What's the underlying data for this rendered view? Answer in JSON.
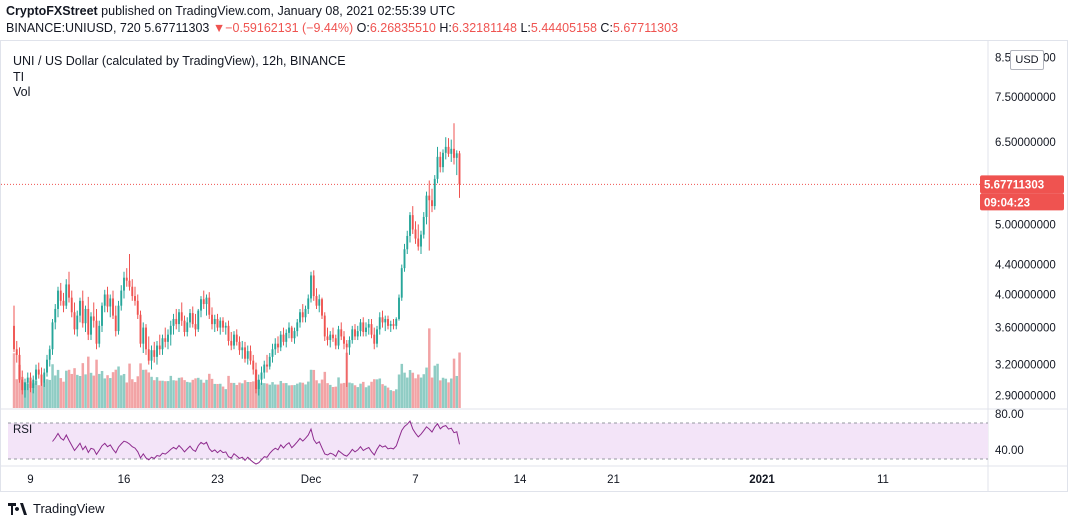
{
  "header": {
    "publisher": "CryptoFXStreet",
    "published_text": "published on TradingView.com, January 08, 2021 02:55:39 UTC"
  },
  "quote": {
    "symbol_text": "BINANCE:UNIUSD, 720",
    "last": "5.67711303",
    "arrow": "▼",
    "change": "−0.59162131 (−9.44%)",
    "o_label": "O:",
    "o": "6.26835510",
    "h_label": "H:",
    "h": "6.32181148",
    "l_label": "L:",
    "l": "5.44405158",
    "c_label": "C:",
    "c": "5.67711303"
  },
  "legend": {
    "title": "UNI / US Dollar (calculated by TradingView), 12h, BINANCE",
    "indicator1": "TI",
    "indicator2": "Vol",
    "rsi": "RSI"
  },
  "price_scale": {
    "currency": "USD",
    "last_price_label": "5.67711303",
    "countdown_label": "09:04:23",
    "rsi_ticks": [
      "80.00",
      "40.00"
    ]
  },
  "footer": {
    "brand": "TradingView"
  },
  "colors": {
    "up": "#26a69a",
    "down": "#ef5350",
    "vol_up": "#8fccc4",
    "vol_down": "#f2a3a5",
    "rsi": "#8e2b8e",
    "rsi_band": "#f3e4f8"
  },
  "chart_data": {
    "type": "candlestick",
    "timeframe": "12h",
    "y_scale": "log",
    "y_ticks": [
      "8.50000000",
      "7.50000000",
      "6.50000000",
      "5.00000000",
      "4.40000000",
      "4.00000000",
      "3.60000000",
      "3.20000000",
      "2.90000000"
    ],
    "x_ticks": [
      "9",
      "16",
      "23",
      "Dec",
      "7",
      "14",
      "21",
      "2021",
      "11"
    ],
    "x_tick_sessions": [
      6,
      40,
      74,
      108,
      146,
      184,
      218,
      272,
      316
    ],
    "candles": [
      [
        3.62,
        3.86,
        3.33,
        3.36
      ],
      [
        3.36,
        3.45,
        3.22,
        3.3
      ],
      [
        3.3,
        3.38,
        3.02,
        3.05
      ],
      [
        3.05,
        3.14,
        2.91,
        2.95
      ],
      [
        2.95,
        3.06,
        2.88,
        3.02
      ],
      [
        3.02,
        3.12,
        2.95,
        3.07
      ],
      [
        3.07,
        3.12,
        2.93,
        2.97
      ],
      [
        2.97,
        3.09,
        2.92,
        3.05
      ],
      [
        3.05,
        3.2,
        3.0,
        3.15
      ],
      [
        3.15,
        3.22,
        3.06,
        3.1
      ],
      [
        3.1,
        3.17,
        2.99,
        3.02
      ],
      [
        3.02,
        3.16,
        2.98,
        3.12
      ],
      [
        3.12,
        3.3,
        3.08,
        3.25
      ],
      [
        3.25,
        3.4,
        3.18,
        3.36
      ],
      [
        3.36,
        3.7,
        3.3,
        3.66
      ],
      [
        3.66,
        3.88,
        3.58,
        3.82
      ],
      [
        3.82,
        4.1,
        3.72,
        4.05
      ],
      [
        4.05,
        4.15,
        3.86,
        3.92
      ],
      [
        3.92,
        4.02,
        3.78,
        3.86
      ],
      [
        3.86,
        4.2,
        3.82,
        4.13
      ],
      [
        4.13,
        4.3,
        3.9,
        3.96
      ],
      [
        3.96,
        4.05,
        3.72,
        3.78
      ],
      [
        3.78,
        3.9,
        3.52,
        3.58
      ],
      [
        3.58,
        3.8,
        3.5,
        3.74
      ],
      [
        3.74,
        3.96,
        3.66,
        3.92
      ],
      [
        3.92,
        4.05,
        3.6,
        3.65
      ],
      [
        3.65,
        3.86,
        3.55,
        3.82
      ],
      [
        3.82,
        3.97,
        3.46,
        3.52
      ],
      [
        3.52,
        3.78,
        3.46,
        3.73
      ],
      [
        3.73,
        3.9,
        3.6,
        3.68
      ],
      [
        3.68,
        3.82,
        3.36,
        3.42
      ],
      [
        3.42,
        3.68,
        3.38,
        3.62
      ],
      [
        3.62,
        3.9,
        3.55,
        3.86
      ],
      [
        3.86,
        4.06,
        3.78,
        4.0
      ],
      [
        4.0,
        4.1,
        3.78,
        3.85
      ],
      [
        3.85,
        4.0,
        3.72,
        3.95
      ],
      [
        3.95,
        4.05,
        3.7,
        3.74
      ],
      [
        3.74,
        3.86,
        3.5,
        3.56
      ],
      [
        3.56,
        3.92,
        3.52,
        3.86
      ],
      [
        3.86,
        4.12,
        3.8,
        4.05
      ],
      [
        4.05,
        4.3,
        3.95,
        4.22
      ],
      [
        4.22,
        4.35,
        4.1,
        4.18
      ],
      [
        4.18,
        4.55,
        4.05,
        4.1
      ],
      [
        4.1,
        4.2,
        3.92,
        3.98
      ],
      [
        3.98,
        4.1,
        3.86,
        3.92
      ],
      [
        3.92,
        4.0,
        3.7,
        3.75
      ],
      [
        3.75,
        3.8,
        3.38,
        3.42
      ],
      [
        3.42,
        3.66,
        3.32,
        3.6
      ],
      [
        3.6,
        3.64,
        3.3,
        3.36
      ],
      [
        3.36,
        3.5,
        3.2,
        3.24
      ],
      [
        3.24,
        3.4,
        3.15,
        3.35
      ],
      [
        3.35,
        3.44,
        3.22,
        3.28
      ],
      [
        3.28,
        3.45,
        3.2,
        3.4
      ],
      [
        3.4,
        3.52,
        3.3,
        3.36
      ],
      [
        3.36,
        3.52,
        3.3,
        3.48
      ],
      [
        3.48,
        3.6,
        3.38,
        3.44
      ],
      [
        3.44,
        3.58,
        3.36,
        3.52
      ],
      [
        3.52,
        3.68,
        3.4,
        3.62
      ],
      [
        3.62,
        3.76,
        3.52,
        3.7
      ],
      [
        3.7,
        3.82,
        3.58,
        3.64
      ],
      [
        3.64,
        3.82,
        3.55,
        3.78
      ],
      [
        3.78,
        3.9,
        3.62,
        3.68
      ],
      [
        3.68,
        3.74,
        3.5,
        3.55
      ],
      [
        3.55,
        3.72,
        3.5,
        3.66
      ],
      [
        3.66,
        3.82,
        3.6,
        3.77
      ],
      [
        3.77,
        3.85,
        3.6,
        3.64
      ],
      [
        3.64,
        3.76,
        3.5,
        3.58
      ],
      [
        3.58,
        3.82,
        3.55,
        3.8
      ],
      [
        3.8,
        3.98,
        3.72,
        3.94
      ],
      [
        3.94,
        4.05,
        3.82,
        3.88
      ],
      [
        3.88,
        4.0,
        3.74,
        3.96
      ],
      [
        3.96,
        4.03,
        3.7,
        3.75
      ],
      [
        3.75,
        3.84,
        3.58,
        3.64
      ],
      [
        3.64,
        3.75,
        3.55,
        3.7
      ],
      [
        3.7,
        3.76,
        3.56,
        3.6
      ],
      [
        3.6,
        3.72,
        3.52,
        3.68
      ],
      [
        3.68,
        3.72,
        3.55,
        3.6
      ],
      [
        3.6,
        3.66,
        3.52,
        3.62
      ],
      [
        3.62,
        3.68,
        3.4,
        3.45
      ],
      [
        3.45,
        3.55,
        3.35,
        3.4
      ],
      [
        3.4,
        3.56,
        3.36,
        3.52
      ],
      [
        3.52,
        3.58,
        3.4,
        3.44
      ],
      [
        3.44,
        3.5,
        3.3,
        3.35
      ],
      [
        3.35,
        3.45,
        3.26,
        3.38
      ],
      [
        3.38,
        3.44,
        3.22,
        3.26
      ],
      [
        3.26,
        3.4,
        3.2,
        3.34
      ],
      [
        3.34,
        3.4,
        3.2,
        3.24
      ],
      [
        3.24,
        3.3,
        3.1,
        3.15
      ],
      [
        3.15,
        3.22,
        2.92,
        2.96
      ],
      [
        2.96,
        3.1,
        2.9,
        3.05
      ],
      [
        3.05,
        3.18,
        3.0,
        3.12
      ],
      [
        3.12,
        3.24,
        3.06,
        3.2
      ],
      [
        3.2,
        3.3,
        3.12,
        3.18
      ],
      [
        3.18,
        3.32,
        3.15,
        3.28
      ],
      [
        3.28,
        3.42,
        3.22,
        3.36
      ],
      [
        3.36,
        3.48,
        3.3,
        3.42
      ],
      [
        3.42,
        3.5,
        3.32,
        3.38
      ],
      [
        3.38,
        3.56,
        3.34,
        3.52
      ],
      [
        3.52,
        3.6,
        3.4,
        3.44
      ],
      [
        3.44,
        3.58,
        3.38,
        3.54
      ],
      [
        3.54,
        3.66,
        3.48,
        3.6
      ],
      [
        3.6,
        3.62,
        3.44,
        3.48
      ],
      [
        3.48,
        3.6,
        3.42,
        3.56
      ],
      [
        3.56,
        3.7,
        3.5,
        3.66
      ],
      [
        3.66,
        3.82,
        3.6,
        3.78
      ],
      [
        3.78,
        3.88,
        3.66,
        3.72
      ],
      [
        3.72,
        3.86,
        3.66,
        3.82
      ],
      [
        3.82,
        4.0,
        3.76,
        3.95
      ],
      [
        3.95,
        4.3,
        3.9,
        4.25
      ],
      [
        4.25,
        4.32,
        3.92,
        3.98
      ],
      [
        3.98,
        4.08,
        3.82,
        3.86
      ],
      [
        3.86,
        4.0,
        3.78,
        3.94
      ],
      [
        3.94,
        3.96,
        3.7,
        3.74
      ],
      [
        3.74,
        3.78,
        3.45,
        3.5
      ],
      [
        3.5,
        3.6,
        3.4,
        3.46
      ],
      [
        3.46,
        3.56,
        3.38,
        3.52
      ],
      [
        3.52,
        3.6,
        3.44,
        3.48
      ],
      [
        3.48,
        3.52,
        3.36,
        3.4
      ],
      [
        3.4,
        3.62,
        3.36,
        3.58
      ],
      [
        3.58,
        3.66,
        3.46,
        3.5
      ],
      [
        3.5,
        3.56,
        3.36,
        3.42
      ],
      [
        3.42,
        3.46,
        2.98,
        3.38
      ],
      [
        3.38,
        3.5,
        3.3,
        3.46
      ],
      [
        3.46,
        3.62,
        3.42,
        3.58
      ],
      [
        3.58,
        3.64,
        3.46,
        3.5
      ],
      [
        3.5,
        3.62,
        3.46,
        3.56
      ],
      [
        3.56,
        3.7,
        3.5,
        3.66
      ],
      [
        3.66,
        3.72,
        3.5,
        3.55
      ],
      [
        3.55,
        3.66,
        3.5,
        3.6
      ],
      [
        3.6,
        3.7,
        3.52,
        3.64
      ],
      [
        3.64,
        3.7,
        3.48,
        3.52
      ],
      [
        3.52,
        3.6,
        3.36,
        3.42
      ],
      [
        3.42,
        3.62,
        3.38,
        3.58
      ],
      [
        3.58,
        3.78,
        3.52,
        3.72
      ],
      [
        3.72,
        3.8,
        3.6,
        3.66
      ],
      [
        3.66,
        3.74,
        3.56,
        3.7
      ],
      [
        3.7,
        3.74,
        3.58,
        3.62
      ],
      [
        3.62,
        3.68,
        3.55,
        3.64
      ],
      [
        3.64,
        3.7,
        3.58,
        3.62
      ],
      [
        3.62,
        3.72,
        3.58,
        3.7
      ],
      [
        3.7,
        4.0,
        3.68,
        3.96
      ],
      [
        3.96,
        4.4,
        3.92,
        4.35
      ],
      [
        4.35,
        4.7,
        4.3,
        4.62
      ],
      [
        4.62,
        4.9,
        4.55,
        4.82
      ],
      [
        4.82,
        5.2,
        4.72,
        5.15
      ],
      [
        5.15,
        5.3,
        4.85,
        4.92
      ],
      [
        4.92,
        5.05,
        4.7,
        4.78
      ],
      [
        4.78,
        5.0,
        4.6,
        4.66
      ],
      [
        4.66,
        4.9,
        4.55,
        4.84
      ],
      [
        4.84,
        5.2,
        4.78,
        5.12
      ],
      [
        5.12,
        5.55,
        5.0,
        5.48
      ],
      [
        5.48,
        5.75,
        4.6,
        5.4
      ],
      [
        5.4,
        5.6,
        5.2,
        5.3
      ],
      [
        5.3,
        5.85,
        5.24,
        5.78
      ],
      [
        5.78,
        6.4,
        5.7,
        6.2
      ],
      [
        6.2,
        6.3,
        5.9,
        6.0
      ],
      [
        6.0,
        6.35,
        5.9,
        6.28
      ],
      [
        6.28,
        6.6,
        6.15,
        6.4
      ],
      [
        6.4,
        6.58,
        6.2,
        6.26
      ],
      [
        6.26,
        6.55,
        6.1,
        6.36
      ],
      [
        6.36,
        6.9,
        6.05,
        6.18
      ],
      [
        6.18,
        6.33,
        5.85,
        6.27
      ],
      [
        6.27,
        6.32,
        5.44,
        5.68
      ]
    ]
  }
}
